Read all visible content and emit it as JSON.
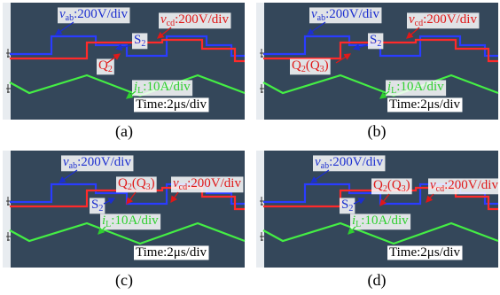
{
  "panels": [
    {
      "label": "(a)",
      "annotations": [
        {
          "color": "#1c2fd0",
          "parts": [
            {
              "t": "v",
              "italic": true
            },
            {
              "t": "ab",
              "sub": true
            },
            {
              "t": ":200V/div"
            }
          ]
        },
        {
          "color": "#e01818",
          "parts": [
            {
              "t": "v",
              "italic": true
            },
            {
              "t": "cd",
              "sub": true
            },
            {
              "t": ":200V/div"
            }
          ]
        },
        {
          "color": "#1c2fd0",
          "parts": [
            {
              "t": "S"
            },
            {
              "t": "2",
              "sub": true
            }
          ]
        },
        {
          "color": "#e01818",
          "parts": [
            {
              "t": "Q"
            },
            {
              "t": "2",
              "sub": true
            }
          ]
        },
        {
          "color": "#2fd02f",
          "parts": [
            {
              "t": "i",
              "italic": true
            },
            {
              "t": "L",
              "sub": true
            },
            {
              "t": ":10A/div"
            }
          ]
        },
        {
          "color": "#000000",
          "parts": [
            {
              "t": "Time:2μs/div"
            }
          ]
        }
      ]
    },
    {
      "label": "(b)",
      "annotations": [
        {
          "color": "#1c2fd0",
          "parts": [
            {
              "t": "v",
              "italic": true
            },
            {
              "t": "ab",
              "sub": true
            },
            {
              "t": ":200V/div"
            }
          ]
        },
        {
          "color": "#e01818",
          "parts": [
            {
              "t": "v",
              "italic": true
            },
            {
              "t": "cd",
              "sub": true
            },
            {
              "t": ":200V/div"
            }
          ]
        },
        {
          "color": "#1c2fd0",
          "parts": [
            {
              "t": "S"
            },
            {
              "t": "2",
              "sub": true
            }
          ]
        },
        {
          "color": "#e01818",
          "parts": [
            {
              "t": "Q"
            },
            {
              "t": "2",
              "sub": true
            },
            {
              "t": "(Q"
            },
            {
              "t": "3",
              "sub": true
            },
            {
              "t": ")"
            }
          ]
        },
        {
          "color": "#2fd02f",
          "parts": [
            {
              "t": "i",
              "italic": true
            },
            {
              "t": "L",
              "sub": true
            },
            {
              "t": ":10A/div"
            }
          ]
        },
        {
          "color": "#000000",
          "parts": [
            {
              "t": "Time:2μs/div"
            }
          ]
        }
      ]
    },
    {
      "label": "(c)",
      "annotations": [
        {
          "color": "#1c2fd0",
          "parts": [
            {
              "t": "v",
              "italic": true
            },
            {
              "t": "ab",
              "sub": true
            },
            {
              "t": ":200V/div"
            }
          ]
        },
        {
          "color": "#e01818",
          "parts": [
            {
              "t": "Q"
            },
            {
              "t": "2",
              "sub": true
            },
            {
              "t": "(Q"
            },
            {
              "t": "3",
              "sub": true
            },
            {
              "t": ")"
            }
          ]
        },
        {
          "color": "#e01818",
          "parts": [
            {
              "t": "v",
              "italic": true
            },
            {
              "t": "cd",
              "sub": true
            },
            {
              "t": ":200V/div"
            }
          ]
        },
        {
          "color": "#1c2fd0",
          "parts": [
            {
              "t": "S"
            },
            {
              "t": "2",
              "sub": true
            }
          ]
        },
        {
          "color": "#2fd02f",
          "parts": [
            {
              "t": "i",
              "italic": true
            },
            {
              "t": "L",
              "sub": true
            },
            {
              "t": ":10A/div"
            }
          ]
        },
        {
          "color": "#000000",
          "parts": [
            {
              "t": "Time:2μs/div"
            }
          ]
        }
      ]
    },
    {
      "label": "(d)",
      "annotations": [
        {
          "color": "#1c2fd0",
          "parts": [
            {
              "t": "v",
              "italic": true
            },
            {
              "t": "ab",
              "sub": true
            },
            {
              "t": ":200V/div"
            }
          ]
        },
        {
          "color": "#e01818",
          "parts": [
            {
              "t": "Q"
            },
            {
              "t": "2",
              "sub": true
            },
            {
              "t": "(Q"
            },
            {
              "t": "3",
              "sub": true
            },
            {
              "t": ")"
            }
          ]
        },
        {
          "color": "#e01818",
          "parts": [
            {
              "t": "v",
              "italic": true
            },
            {
              "t": "cd",
              "sub": true
            },
            {
              "t": ":200V/div"
            }
          ]
        },
        {
          "color": "#1c2fd0",
          "parts": [
            {
              "t": "S"
            },
            {
              "t": "2",
              "sub": true
            }
          ]
        },
        {
          "color": "#2fd02f",
          "parts": [
            {
              "t": "i",
              "italic": true
            },
            {
              "t": "L",
              "sub": true
            },
            {
              "t": ":10A/div"
            }
          ]
        },
        {
          "color": "#000000",
          "parts": [
            {
              "t": "Time:2μs/div"
            }
          ]
        }
      ]
    }
  ]
}
